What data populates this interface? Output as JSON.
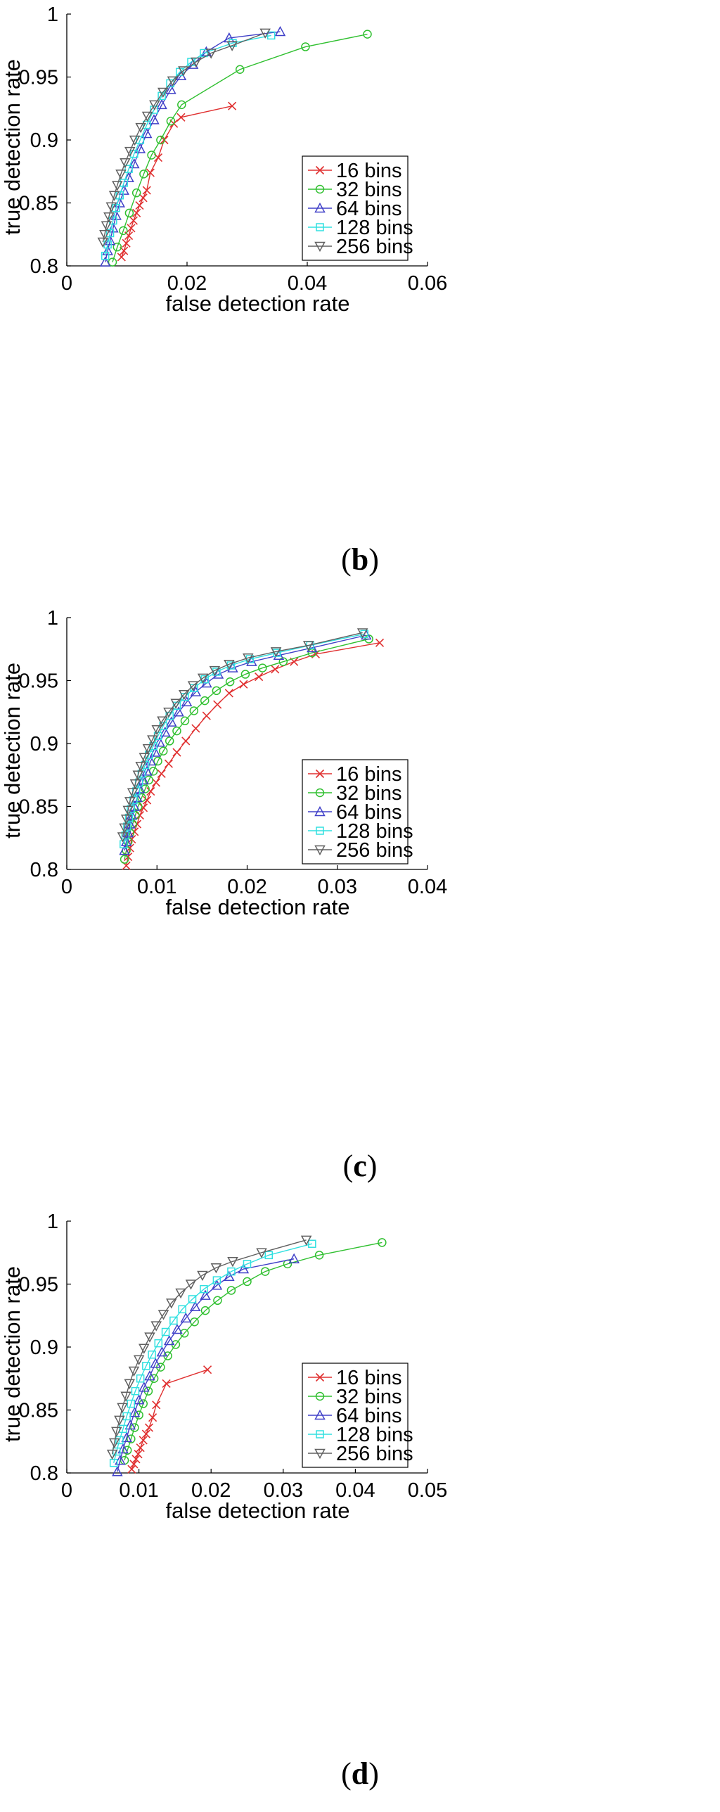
{
  "chart_data": [
    {
      "id": "b",
      "type": "line",
      "caption_letter": "b",
      "xlabel": "false detection rate",
      "ylabel": "true detection rate",
      "xlim": [
        0,
        0.06
      ],
      "ylim": [
        0.8,
        1
      ],
      "xticks": [
        0,
        0.02,
        0.04,
        0.06
      ],
      "xtick_labels": [
        "0",
        "0.02",
        "0.04",
        "0.06"
      ],
      "yticks": [
        0.8,
        0.85,
        0.9,
        0.95,
        1
      ],
      "ytick_labels": [
        "0.8",
        "0.85",
        "0.9",
        "0.95",
        "1"
      ],
      "legend_position": "bottom-right",
      "series": [
        {
          "name": "16 bins",
          "color": "#e03030",
          "marker": "x",
          "x": [
            0.0091,
            0.0095,
            0.0099,
            0.0103,
            0.0107,
            0.0111,
            0.0116,
            0.0121,
            0.0127,
            0.0133,
            0.0139,
            0.0152,
            0.0162,
            0.0178,
            0.019,
            0.0275
          ],
          "y": [
            0.807,
            0.812,
            0.818,
            0.824,
            0.83,
            0.836,
            0.842,
            0.848,
            0.854,
            0.86,
            0.874,
            0.886,
            0.9,
            0.913,
            0.918,
            0.927
          ]
        },
        {
          "name": "32 bins",
          "color": "#30c030",
          "marker": "circle",
          "x": [
            0.0076,
            0.0084,
            0.0094,
            0.0104,
            0.0116,
            0.0128,
            0.0141,
            0.0156,
            0.0173,
            0.0191,
            0.0288,
            0.0397,
            0.05
          ],
          "y": [
            0.803,
            0.815,
            0.828,
            0.842,
            0.858,
            0.873,
            0.888,
            0.9,
            0.915,
            0.928,
            0.956,
            0.974,
            0.984
          ]
        },
        {
          "name": "64 bins",
          "color": "#4040c8",
          "marker": "triangle-up",
          "x": [
            0.0064,
            0.0068,
            0.0072,
            0.0077,
            0.0082,
            0.0088,
            0.0095,
            0.0103,
            0.0112,
            0.0122,
            0.0133,
            0.0145,
            0.0158,
            0.0173,
            0.019,
            0.021,
            0.0232,
            0.027,
            0.0355
          ],
          "y": [
            0.803,
            0.812,
            0.82,
            0.83,
            0.84,
            0.85,
            0.86,
            0.87,
            0.881,
            0.893,
            0.905,
            0.916,
            0.928,
            0.94,
            0.951,
            0.96,
            0.97,
            0.981,
            0.986
          ]
        },
        {
          "name": "128 bins",
          "color": "#30e0e0",
          "marker": "square",
          "x": [
            0.0064,
            0.0068,
            0.0072,
            0.0077,
            0.0082,
            0.0088,
            0.0095,
            0.0103,
            0.0112,
            0.0122,
            0.0133,
            0.0145,
            0.0158,
            0.0172,
            0.0188,
            0.0207,
            0.0228,
            0.0276,
            0.034
          ],
          "y": [
            0.808,
            0.817,
            0.826,
            0.836,
            0.846,
            0.856,
            0.866,
            0.877,
            0.889,
            0.9,
            0.912,
            0.924,
            0.935,
            0.945,
            0.954,
            0.962,
            0.969,
            0.977,
            0.983
          ]
        },
        {
          "name": "256 bins",
          "color": "#606060",
          "marker": "triangle-down",
          "x": [
            0.006,
            0.0063,
            0.0066,
            0.007,
            0.0074,
            0.0079,
            0.0084,
            0.009,
            0.0097,
            0.0105,
            0.0113,
            0.0123,
            0.0134,
            0.0146,
            0.016,
            0.0176,
            0.0194,
            0.0215,
            0.024,
            0.0275,
            0.033
          ],
          "y": [
            0.819,
            0.825,
            0.832,
            0.839,
            0.847,
            0.856,
            0.864,
            0.873,
            0.882,
            0.891,
            0.9,
            0.91,
            0.919,
            0.928,
            0.938,
            0.947,
            0.955,
            0.962,
            0.969,
            0.975,
            0.985
          ]
        }
      ]
    },
    {
      "id": "c",
      "type": "line",
      "caption_letter": "c",
      "xlabel": "false detection rate",
      "ylabel": "true detection rate",
      "xlim": [
        0,
        0.04
      ],
      "ylim": [
        0.8,
        1
      ],
      "xticks": [
        0,
        0.01,
        0.02,
        0.03,
        0.04
      ],
      "xtick_labels": [
        "0",
        "0.01",
        "0.02",
        "0.03",
        "0.04"
      ],
      "yticks": [
        0.8,
        0.85,
        0.9,
        0.95,
        1
      ],
      "ytick_labels": [
        "0.8",
        "0.85",
        "0.9",
        "0.95",
        "1"
      ],
      "legend_position": "bottom-right",
      "series": [
        {
          "name": "16 bins",
          "color": "#e03030",
          "marker": "x",
          "x": [
            0.0066,
            0.0068,
            0.007,
            0.0072,
            0.0075,
            0.0078,
            0.0081,
            0.0085,
            0.0089,
            0.0093,
            0.0099,
            0.0105,
            0.0113,
            0.0122,
            0.0132,
            0.0143,
            0.0155,
            0.0167,
            0.018,
            0.0196,
            0.0213,
            0.0231,
            0.0252,
            0.0276,
            0.0347
          ],
          "y": [
            0.803,
            0.81,
            0.817,
            0.824,
            0.83,
            0.836,
            0.843,
            0.849,
            0.855,
            0.862,
            0.869,
            0.876,
            0.884,
            0.893,
            0.902,
            0.912,
            0.922,
            0.931,
            0.94,
            0.947,
            0.953,
            0.959,
            0.965,
            0.971,
            0.98
          ]
        },
        {
          "name": "32 bins",
          "color": "#30c030",
          "marker": "circle",
          "x": [
            0.0064,
            0.0066,
            0.0068,
            0.007,
            0.0073,
            0.0076,
            0.0079,
            0.0083,
            0.0087,
            0.0091,
            0.0096,
            0.0101,
            0.0107,
            0.0114,
            0.0122,
            0.0131,
            0.0141,
            0.0153,
            0.0166,
            0.0181,
            0.0198,
            0.0217,
            0.024,
            0.0272,
            0.0335
          ],
          "y": [
            0.808,
            0.815,
            0.822,
            0.829,
            0.836,
            0.843,
            0.85,
            0.857,
            0.864,
            0.871,
            0.878,
            0.886,
            0.894,
            0.902,
            0.91,
            0.918,
            0.926,
            0.934,
            0.942,
            0.949,
            0.955,
            0.96,
            0.965,
            0.972,
            0.983
          ]
        },
        {
          "name": "64 bins",
          "color": "#4040c8",
          "marker": "triangle-up",
          "x": [
            0.0064,
            0.0066,
            0.0068,
            0.007,
            0.0072,
            0.0075,
            0.0078,
            0.0081,
            0.0085,
            0.0089,
            0.0093,
            0.0098,
            0.0103,
            0.0109,
            0.0116,
            0.0124,
            0.0133,
            0.0143,
            0.0155,
            0.0168,
            0.0184,
            0.0205,
            0.0235,
            0.0272,
            0.0332
          ],
          "y": [
            0.815,
            0.822,
            0.829,
            0.836,
            0.843,
            0.85,
            0.857,
            0.864,
            0.871,
            0.878,
            0.886,
            0.893,
            0.901,
            0.909,
            0.917,
            0.925,
            0.933,
            0.941,
            0.948,
            0.955,
            0.96,
            0.965,
            0.97,
            0.976,
            0.986
          ]
        },
        {
          "name": "128 bins",
          "color": "#30e0e0",
          "marker": "square",
          "x": [
            0.0063,
            0.0065,
            0.0067,
            0.0069,
            0.0071,
            0.0074,
            0.0077,
            0.008,
            0.0083,
            0.0087,
            0.0091,
            0.0096,
            0.0101,
            0.0107,
            0.0114,
            0.0122,
            0.0131,
            0.0141,
            0.0153,
            0.0166,
            0.0182,
            0.0203,
            0.0233,
            0.027,
            0.033
          ],
          "y": [
            0.82,
            0.827,
            0.834,
            0.841,
            0.848,
            0.855,
            0.862,
            0.869,
            0.876,
            0.883,
            0.891,
            0.898,
            0.906,
            0.914,
            0.922,
            0.93,
            0.937,
            0.944,
            0.951,
            0.957,
            0.962,
            0.967,
            0.972,
            0.978,
            0.987
          ]
        },
        {
          "name": "256 bins",
          "color": "#606060",
          "marker": "triangle-down",
          "x": [
            0.0062,
            0.0064,
            0.0066,
            0.0068,
            0.007,
            0.0073,
            0.0076,
            0.0079,
            0.0082,
            0.0086,
            0.009,
            0.0095,
            0.01,
            0.0106,
            0.0113,
            0.0121,
            0.013,
            0.014,
            0.0151,
            0.0164,
            0.018,
            0.0201,
            0.0232,
            0.0268,
            0.0328
          ],
          "y": [
            0.826,
            0.833,
            0.84,
            0.847,
            0.854,
            0.861,
            0.868,
            0.875,
            0.882,
            0.889,
            0.896,
            0.903,
            0.911,
            0.918,
            0.925,
            0.932,
            0.939,
            0.946,
            0.952,
            0.958,
            0.963,
            0.968,
            0.973,
            0.978,
            0.988
          ]
        }
      ]
    },
    {
      "id": "d",
      "type": "line",
      "caption_letter": "d",
      "xlabel": "false detection rate",
      "ylabel": "true detection rate",
      "xlim": [
        0,
        0.05
      ],
      "ylim": [
        0.8,
        1
      ],
      "xticks": [
        0,
        0.01,
        0.02,
        0.03,
        0.04,
        0.05
      ],
      "xtick_labels": [
        "0",
        "0.01",
        "0.02",
        "0.03",
        "0.04",
        "0.05"
      ],
      "yticks": [
        0.8,
        0.85,
        0.9,
        0.95,
        1
      ],
      "ytick_labels": [
        "0.8",
        "0.85",
        "0.9",
        "0.95",
        "1"
      ],
      "legend_position": "bottom-right",
      "series": [
        {
          "name": "16 bins",
          "color": "#e03030",
          "marker": "x",
          "x": [
            0.009,
            0.0093,
            0.0096,
            0.0099,
            0.0102,
            0.0106,
            0.011,
            0.0114,
            0.0119,
            0.0124,
            0.0138,
            0.0195
          ],
          "y": [
            0.803,
            0.807,
            0.811,
            0.815,
            0.82,
            0.826,
            0.831,
            0.836,
            0.844,
            0.854,
            0.871,
            0.882
          ]
        },
        {
          "name": "32 bins",
          "color": "#30c030",
          "marker": "circle",
          "x": [
            0.008,
            0.0084,
            0.0089,
            0.0094,
            0.01,
            0.0106,
            0.0113,
            0.0121,
            0.013,
            0.014,
            0.0151,
            0.0163,
            0.0177,
            0.0192,
            0.0209,
            0.0228,
            0.025,
            0.0275,
            0.0306,
            0.035,
            0.0437
          ],
          "y": [
            0.81,
            0.818,
            0.827,
            0.836,
            0.846,
            0.855,
            0.865,
            0.875,
            0.884,
            0.893,
            0.902,
            0.911,
            0.92,
            0.929,
            0.937,
            0.945,
            0.952,
            0.96,
            0.966,
            0.973,
            0.983
          ]
        },
        {
          "name": "64 bins",
          "color": "#4040c8",
          "marker": "triangle-up",
          "x": [
            0.007,
            0.0074,
            0.0078,
            0.0083,
            0.0088,
            0.0094,
            0.01,
            0.0107,
            0.0115,
            0.0123,
            0.0132,
            0.0142,
            0.0153,
            0.0165,
            0.0178,
            0.0192,
            0.0208,
            0.0225,
            0.0245,
            0.0315
          ],
          "y": [
            0.801,
            0.81,
            0.819,
            0.828,
            0.838,
            0.848,
            0.858,
            0.868,
            0.877,
            0.887,
            0.896,
            0.905,
            0.914,
            0.923,
            0.932,
            0.941,
            0.949,
            0.956,
            0.962,
            0.97
          ]
        },
        {
          "name": "128 bins",
          "color": "#30e0e0",
          "marker": "square",
          "x": [
            0.0065,
            0.0069,
            0.0073,
            0.0078,
            0.0083,
            0.0089,
            0.0095,
            0.0102,
            0.011,
            0.0118,
            0.0127,
            0.0137,
            0.0148,
            0.016,
            0.0174,
            0.019,
            0.0208,
            0.0228,
            0.025,
            0.028,
            0.034
          ],
          "y": [
            0.808,
            0.817,
            0.826,
            0.835,
            0.845,
            0.855,
            0.865,
            0.875,
            0.885,
            0.894,
            0.903,
            0.912,
            0.921,
            0.93,
            0.938,
            0.946,
            0.953,
            0.96,
            0.966,
            0.973,
            0.982
          ]
        },
        {
          "name": "256 bins",
          "color": "#606060",
          "marker": "triangle-down",
          "x": [
            0.0063,
            0.0066,
            0.0069,
            0.0073,
            0.0077,
            0.0082,
            0.0087,
            0.0093,
            0.01,
            0.0107,
            0.0115,
            0.0124,
            0.0134,
            0.0145,
            0.0158,
            0.0172,
            0.0188,
            0.0207,
            0.023,
            0.027,
            0.0332
          ],
          "y": [
            0.815,
            0.824,
            0.833,
            0.842,
            0.852,
            0.861,
            0.871,
            0.881,
            0.89,
            0.899,
            0.908,
            0.917,
            0.926,
            0.935,
            0.943,
            0.95,
            0.957,
            0.963,
            0.968,
            0.975,
            0.985
          ]
        }
      ]
    }
  ]
}
